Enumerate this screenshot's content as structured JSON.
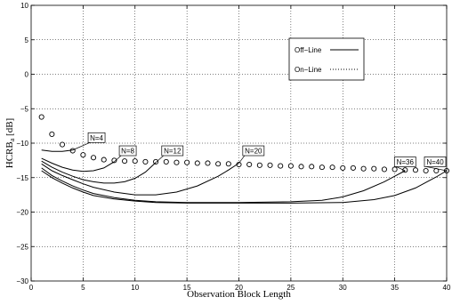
{
  "chart_data": {
    "type": "line",
    "xlabel": "Observation Block Length",
    "ylabel": "HCRB",
    "ylabel_sub": "a",
    "ylabel_unit": " [dB]",
    "xlim": [
      0,
      40
    ],
    "ylim": [
      -30,
      10
    ],
    "xticks": [
      "0",
      "5",
      "10",
      "15",
      "20",
      "25",
      "30",
      "35",
      "40"
    ],
    "yticks": [
      "10",
      "5",
      "0",
      "−5",
      "−10",
      "−15",
      "−20",
      "−25",
      "−30"
    ],
    "grid": true,
    "legend": {
      "placement": "upper-right",
      "entries": [
        {
          "label": "Off−Line",
          "style": "solid"
        },
        {
          "label": "On−Line",
          "style": "dotted"
        }
      ]
    },
    "series": [
      {
        "name": "On−Line",
        "style": "circles",
        "x": [
          1,
          2,
          3,
          4,
          5,
          6,
          7,
          8,
          9,
          10,
          11,
          12,
          13,
          14,
          15,
          16,
          17,
          18,
          19,
          20,
          21,
          22,
          23,
          24,
          25,
          26,
          27,
          28,
          29,
          30,
          31,
          32,
          33,
          34,
          35,
          36,
          37,
          38,
          39,
          40
        ],
        "y": [
          -6.2,
          -8.7,
          -10.2,
          -11.1,
          -11.7,
          -12.1,
          -12.4,
          -12.5,
          -12.6,
          -12.6,
          -12.7,
          -12.7,
          -12.7,
          -12.8,
          -12.8,
          -12.9,
          -12.9,
          -13.0,
          -13.0,
          -13.1,
          -13.1,
          -13.2,
          -13.2,
          -13.3,
          -13.3,
          -13.4,
          -13.4,
          -13.5,
          -13.5,
          -13.6,
          -13.6,
          -13.7,
          -13.7,
          -13.8,
          -13.8,
          -13.9,
          -13.9,
          -14.0,
          -14.0,
          -14.0
        ]
      },
      {
        "name": "N=4",
        "style": "solid",
        "x": [
          1,
          2,
          3,
          4
        ],
        "y": [
          -11.0,
          -11.2,
          -11.2,
          -11.0
        ]
      },
      {
        "name": "N=8",
        "style": "solid",
        "x": [
          1,
          2,
          3,
          4,
          5,
          6,
          7,
          8
        ],
        "y": [
          -12.2,
          -12.9,
          -13.5,
          -13.9,
          -14.1,
          -14.0,
          -13.6,
          -12.7
        ]
      },
      {
        "name": "N=12",
        "style": "solid",
        "x": [
          1,
          2,
          3,
          4,
          5,
          6,
          7,
          8,
          9,
          10,
          11,
          12
        ],
        "y": [
          -12.6,
          -13.5,
          -14.2,
          -14.8,
          -15.3,
          -15.6,
          -15.8,
          -15.8,
          -15.6,
          -15.1,
          -14.2,
          -12.8
        ]
      },
      {
        "name": "N=20",
        "style": "solid",
        "x": [
          1,
          2,
          3,
          4,
          5,
          6,
          8,
          10,
          12,
          14,
          16,
          18,
          19,
          20
        ],
        "y": [
          -13.0,
          -14.0,
          -14.7,
          -15.3,
          -15.9,
          -16.4,
          -17.1,
          -17.5,
          -17.5,
          -17.1,
          -16.2,
          -14.8,
          -13.9,
          -12.9
        ]
      },
      {
        "name": "N=36",
        "style": "solid",
        "x": [
          1,
          2,
          3,
          4,
          5,
          6,
          8,
          10,
          12,
          15,
          20,
          25,
          28,
          30,
          32,
          34,
          35,
          36
        ],
        "y": [
          -13.6,
          -14.7,
          -15.5,
          -16.2,
          -16.8,
          -17.3,
          -17.9,
          -18.3,
          -18.5,
          -18.6,
          -18.6,
          -18.5,
          -18.3,
          -17.8,
          -16.9,
          -15.6,
          -14.8,
          -14.0
        ]
      },
      {
        "name": "N=40",
        "style": "solid",
        "x": [
          1,
          2,
          3,
          4,
          5,
          6,
          8,
          10,
          12,
          15,
          20,
          25,
          30,
          33,
          35,
          37,
          38,
          39,
          40
        ],
        "y": [
          -14.0,
          -15.0,
          -15.8,
          -16.5,
          -17.1,
          -17.6,
          -18.1,
          -18.4,
          -18.6,
          -18.7,
          -18.7,
          -18.7,
          -18.6,
          -18.2,
          -17.6,
          -16.5,
          -15.7,
          -14.9,
          -14.0
        ]
      }
    ],
    "annotations": [
      {
        "text": "N=4",
        "x": 6.3,
        "y": -9.2,
        "target": [
          4,
          -11.0
        ]
      },
      {
        "text": "N=8",
        "x": 9.3,
        "y": -11.1,
        "target": [
          8,
          -12.7
        ]
      },
      {
        "text": "N=12",
        "x": 13.6,
        "y": -11.1,
        "target": [
          12,
          -12.8
        ]
      },
      {
        "text": "N=20",
        "x": 21.4,
        "y": -11.1,
        "target": [
          20,
          -12.9
        ]
      },
      {
        "text": "N=36",
        "x": 36.0,
        "y": -12.7,
        "target": [
          36,
          -14.0
        ]
      },
      {
        "text": "N=40",
        "x": 39.6,
        "y": -12.7,
        "target": [
          40,
          -14.0
        ]
      }
    ]
  }
}
